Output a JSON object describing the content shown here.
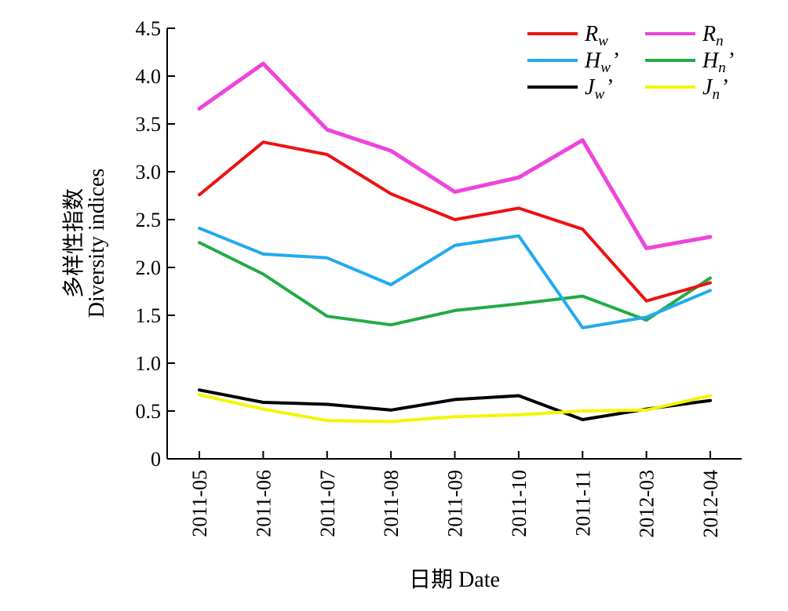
{
  "chart_data": {
    "type": "line",
    "categories": [
      "2011-05",
      "2011-06",
      "2011-07",
      "2011-08",
      "2011-09",
      "2011-10",
      "2011-11",
      "2012-03",
      "2012-04"
    ],
    "ylim": [
      0,
      4.5
    ],
    "yticks": [
      "0",
      "0.5",
      "1.0",
      "1.5",
      "2.0",
      "2.5",
      "3.0",
      "3.5",
      "4.0",
      "4.5"
    ],
    "ylabel_cn": "多样性指数",
    "ylabel": "Diversity indices",
    "xlabel": "日期 Date",
    "grid": false,
    "legend_position": "top-right",
    "series": [
      {
        "name": "R",
        "sub": "w",
        "prime": "",
        "color": "#ee1111",
        "values": [
          2.76,
          3.31,
          3.18,
          2.77,
          2.5,
          2.62,
          2.4,
          1.65,
          1.84
        ]
      },
      {
        "name": "R",
        "sub": "n",
        "prime": "",
        "color": "#ee44dd",
        "values": [
          3.66,
          4.13,
          3.44,
          3.22,
          2.79,
          2.94,
          3.33,
          2.2,
          2.32
        ]
      },
      {
        "name": "H",
        "sub": "w",
        "prime": "’",
        "color": "#22aaee",
        "values": [
          2.41,
          2.14,
          2.1,
          1.82,
          2.23,
          2.33,
          1.37,
          1.48,
          1.76
        ]
      },
      {
        "name": "H",
        "sub": "n",
        "prime": "’",
        "color": "#22aa44",
        "values": [
          2.26,
          1.93,
          1.49,
          1.4,
          1.55,
          1.62,
          1.7,
          1.45,
          1.89
        ]
      },
      {
        "name": "J",
        "sub": "w",
        "prime": "’",
        "color": "#000000",
        "values": [
          0.72,
          0.59,
          0.57,
          0.51,
          0.62,
          0.66,
          0.41,
          0.52,
          0.61
        ]
      },
      {
        "name": "J",
        "sub": "n",
        "prime": "’",
        "color": "#f5f500",
        "values": [
          0.67,
          0.52,
          0.4,
          0.39,
          0.44,
          0.46,
          0.5,
          0.51,
          0.66
        ]
      }
    ]
  }
}
